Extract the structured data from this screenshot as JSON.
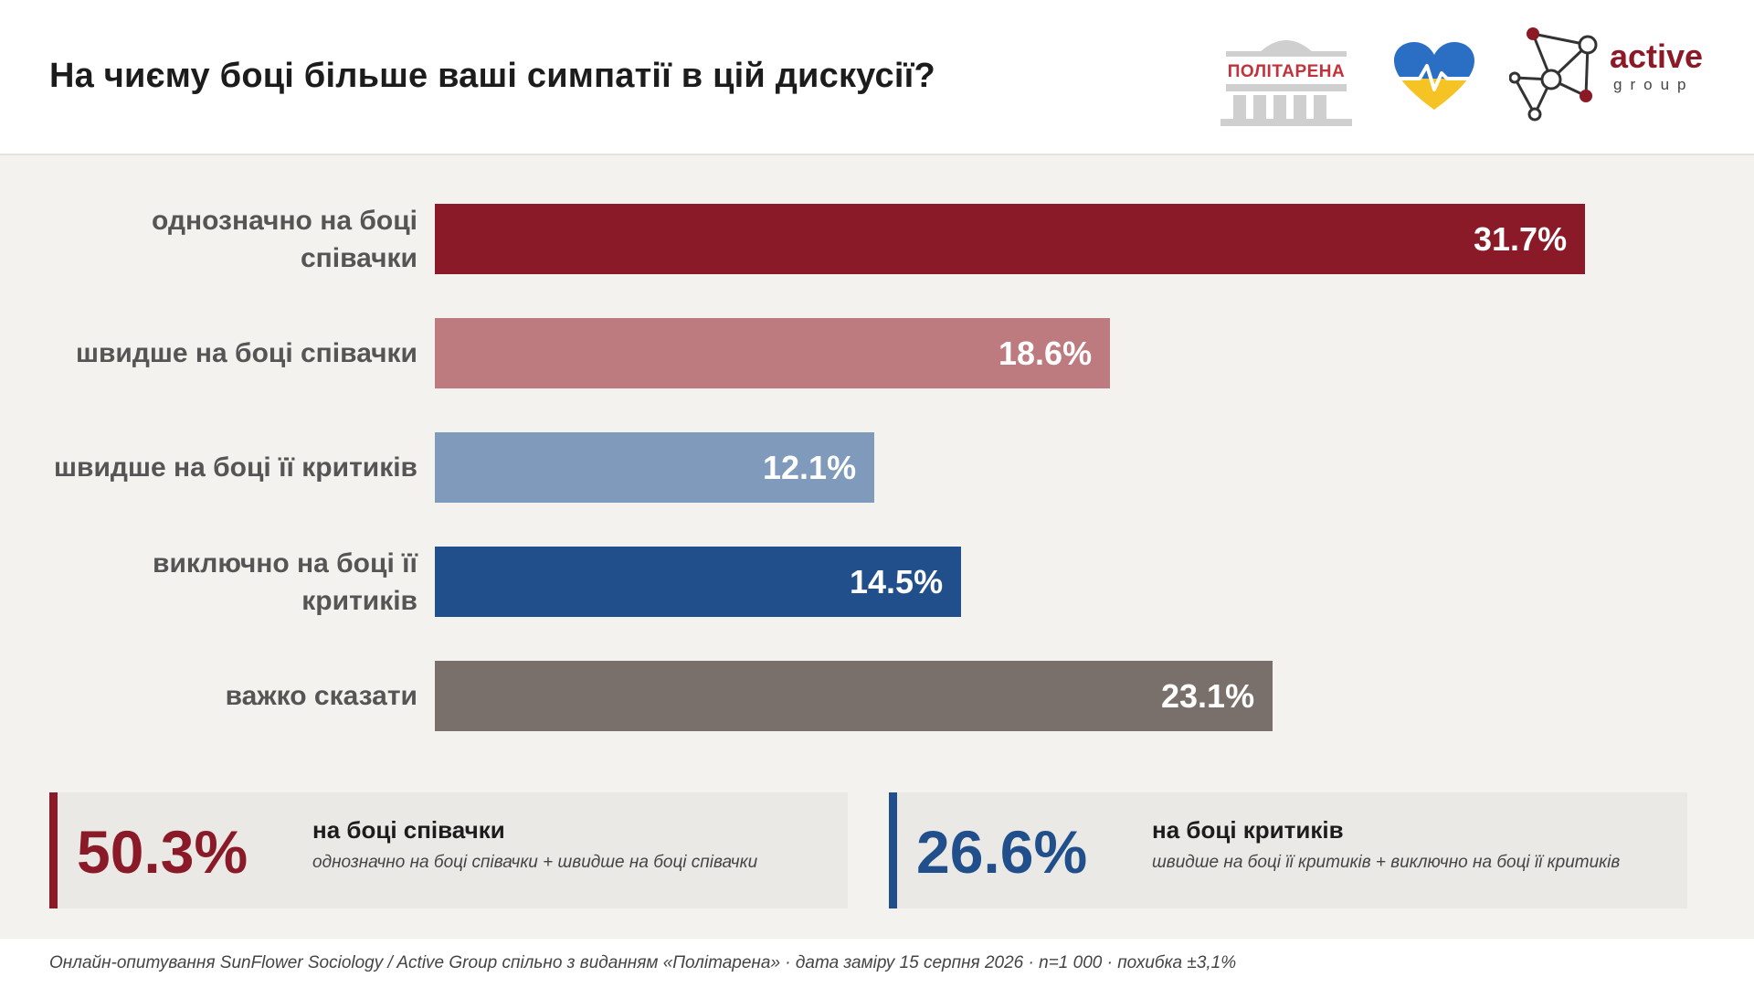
{
  "title": "На чиєму боці більше ваші симпатії в цій дискусії?",
  "logos": {
    "politarena": "ПОЛІТАРЕНА",
    "active_word": "active",
    "group_word": "group"
  },
  "chart_data": {
    "type": "bar",
    "orientation": "horizontal",
    "categories": [
      "однозначно на боці співачки",
      "швидше на боці співачки",
      "швидше на боці її критиків",
      "виключно на боці її критиків",
      "важко сказати"
    ],
    "values": [
      31.7,
      18.6,
      12.1,
      14.5,
      23.1
    ],
    "value_labels": [
      "31.7%",
      "18.6%",
      "12.1%",
      "14.5%",
      "23.1%"
    ],
    "colors": [
      "#8a1a27",
      "#bd7b7f",
      "#7f9aba",
      "#214f8b",
      "#7a706b"
    ],
    "xlim": [
      0,
      31.7
    ],
    "grid": false
  },
  "summary": [
    {
      "value": "50.3%",
      "title": "на боці співачки",
      "subtitle": "однозначно на боці співачки + швидше на боці співачки",
      "color": "#8a1a27"
    },
    {
      "value": "26.6%",
      "title": "на боці критиків",
      "subtitle": "швидше на боці її критиків + виключно на боці її критиків",
      "color": "#214f8b"
    }
  ],
  "footer": "Онлайн-опитування SunFlower Sociology / Active Group спільно з виданням «Політарена» · дата заміру 15 серпня 2026 · n=1 000 · похибка ±3,1%"
}
